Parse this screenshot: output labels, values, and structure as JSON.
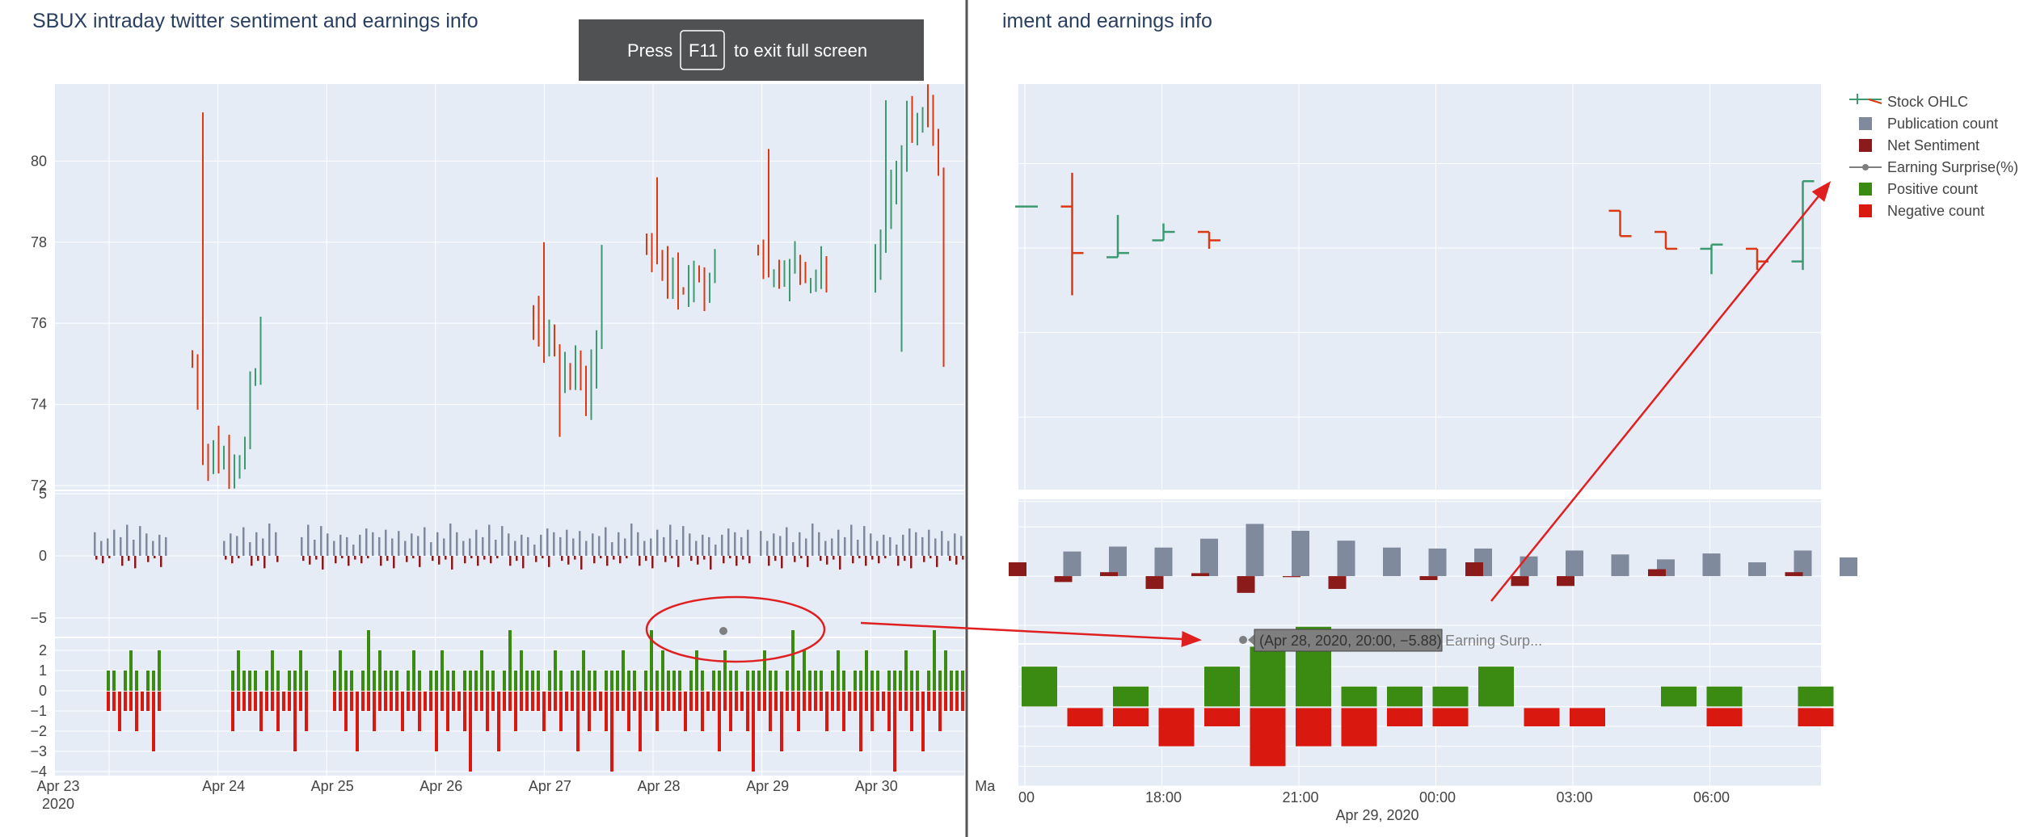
{
  "left_title": "SBUX intraday twitter sentiment and earnings info",
  "right_title_fragment": "iment and earnings info",
  "fullscreen_banner": {
    "press": "Press",
    "key": "F11",
    "rest": "to exit full screen"
  },
  "left_axes": {
    "price_ticks": [
      "80",
      "78",
      "76",
      "74",
      "72"
    ],
    "count_ticks": [
      "5",
      "0",
      "−5"
    ],
    "pn_ticks": [
      "2",
      "1",
      "0",
      "−1",
      "−2",
      "−3",
      "−4"
    ],
    "date_ticks": [
      "Apr 23",
      "Apr 24",
      "Apr 25",
      "Apr 26",
      "Apr 27",
      "Apr 28",
      "Apr 29",
      "Apr 30",
      "Ma"
    ],
    "year_label": "2020"
  },
  "right_axes": {
    "time_ticks": [
      "00",
      "18:00",
      "21:00",
      "00:00",
      "03:00",
      "06:00"
    ],
    "date_label": "Apr 29, 2020"
  },
  "hover": {
    "text": "(Apr 28, 2020, 20:00, −5.88)",
    "name": "Earning Surp..."
  },
  "legend": [
    {
      "label": "Stock OHLC",
      "type": "ohlc",
      "up": "#3d9970",
      "down": "#dc3912"
    },
    {
      "label": "Publication count",
      "type": "square",
      "color": "#7f8a9c"
    },
    {
      "label": "Net Sentiment",
      "type": "square",
      "color": "#8b1a1a"
    },
    {
      "label": "Earning Surprise(%)",
      "type": "line-marker",
      "color": "#7f7f7f"
    },
    {
      "label": "Positive count",
      "type": "square",
      "color": "#3b8a12"
    },
    {
      "label": "Negative count",
      "type": "square",
      "color": "#d9190f"
    }
  ],
  "colors": {
    "plot_bg": "#e5ecf6",
    "grid": "#ffffff",
    "ohlc_up": "#3d9970",
    "ohlc_down": "#dc3912",
    "pub": "#7f8a9c",
    "net": "#8b1a1a",
    "pos": "#3b8a12",
    "neg": "#d9190f",
    "annotation": "#e02020",
    "surprise": "#7f7f7f"
  },
  "chart_data": [
    {
      "type": "ohlc",
      "name": "Stock OHLC",
      "panel": "left-price",
      "ylim": [
        72,
        81.5
      ],
      "x_range": [
        "2020-04-23",
        "2020-05-01"
      ],
      "sessions": [
        {
          "date": "2020-04-24",
          "open": 75.0,
          "high": 81.2,
          "low": 72.3,
          "close": 75.7
        },
        {
          "date": "2020-04-27",
          "open": 76.4,
          "high": 78.0,
          "low": 73.2,
          "close": 77.6
        },
        {
          "date": "2020-04-28",
          "open": 78.0,
          "high": 79.6,
          "low": 76.6,
          "close": 77.8
        },
        {
          "date": "2020-04-29",
          "open": 77.9,
          "high": 80.3,
          "low": 76.9,
          "close": 77.3
        },
        {
          "date": "2020-04-30",
          "open": 77.3,
          "high": 81.5,
          "low": 75.3,
          "close": 75.5
        }
      ]
    },
    {
      "type": "bar",
      "panel": "left-counts",
      "ylim": [
        -6.5,
        5.2
      ],
      "series": [
        {
          "name": "Publication count",
          "hourly": [
            1.9,
            1.2,
            1.4,
            2.1,
            1.5,
            2.5,
            1.3,
            2.4,
            1.8,
            1.2,
            1.7,
            1.5,
            0.9,
            1.7,
            2.2,
            1.9,
            1.5,
            2.1,
            1.4,
            2.0,
            1.2,
            1.8,
            1.6,
            2.3,
            1.1,
            1.9,
            1.4,
            2.6
          ]
        },
        {
          "name": "Net Sentiment",
          "hourly": [
            -0.3,
            -0.6,
            -0.2,
            0.4,
            -0.8,
            -0.4,
            -1.0,
            0.3,
            -0.5,
            -0.2,
            -0.9,
            0.2,
            -0.4,
            -0.7,
            -0.3,
            -1.1,
            0.4,
            -0.6,
            -0.2,
            -0.8
          ]
        },
        {
          "name": "Earning Surprise(%)",
          "point": {
            "x": "2020-04-28 20:00",
            "y": -5.88
          }
        }
      ]
    },
    {
      "type": "bar",
      "panel": "left-posneg",
      "ylim": [
        -4.2,
        2.6
      ],
      "series": [
        {
          "name": "Positive count",
          "hourly": [
            1,
            1,
            0,
            1,
            2,
            1,
            0,
            1,
            1,
            2,
            1,
            1,
            0,
            1,
            1,
            1,
            2,
            1,
            1,
            0,
            1,
            3,
            1,
            2,
            1
          ]
        },
        {
          "name": "Negative count",
          "hourly": [
            -1,
            -1,
            -2,
            -1,
            -1,
            -2,
            -1,
            -1,
            -3,
            -1,
            -2,
            -1,
            -1,
            -2,
            -4,
            -1,
            -1,
            -2,
            -1,
            -3,
            -1,
            -1,
            -2,
            -1,
            -1
          ]
        }
      ]
    },
    {
      "type": "ohlc",
      "name": "Stock OHLC (zoomed)",
      "panel": "right-price",
      "x_range": [
        "2020-04-28 15:00",
        "2020-04-29 08:00"
      ],
      "bars": [
        {
          "x": "2020-04-28 15:00",
          "open": 78.6,
          "high": 78.6,
          "low": 78.6,
          "close": 78.6
        },
        {
          "x": "2020-04-28 16:00",
          "open": 78.6,
          "high": 79.4,
          "low": 76.5,
          "close": 77.5
        },
        {
          "x": "2020-04-28 17:00",
          "open": 77.4,
          "high": 78.4,
          "low": 77.4,
          "close": 77.5
        },
        {
          "x": "2020-04-28 18:00",
          "open": 77.8,
          "high": 78.2,
          "low": 77.8,
          "close": 78.0
        },
        {
          "x": "2020-04-28 19:00",
          "open": 78.0,
          "high": 78.0,
          "low": 77.6,
          "close": 77.8
        },
        {
          "x": "2020-04-29 04:00",
          "open": 78.5,
          "high": 78.5,
          "low": 77.9,
          "close": 77.9
        },
        {
          "x": "2020-04-29 05:00",
          "open": 78.0,
          "high": 78.0,
          "low": 77.6,
          "close": 77.6
        },
        {
          "x": "2020-04-29 06:00",
          "open": 77.6,
          "high": 77.7,
          "low": 77.0,
          "close": 77.7
        },
        {
          "x": "2020-04-29 07:00",
          "open": 77.6,
          "high": 77.6,
          "low": 77.1,
          "close": 77.3
        },
        {
          "x": "2020-04-29 08:00",
          "open": 77.3,
          "high": 79.2,
          "low": 77.1,
          "close": 79.2
        }
      ]
    },
    {
      "type": "bar",
      "panel": "right-counts",
      "x": [
        "15:00",
        "16:00",
        "17:00",
        "18:00",
        "19:00",
        "20:00",
        "21:00",
        "22:00",
        "23:00",
        "00:00",
        "01:00",
        "02:00",
        "03:00",
        "04:00",
        "05:00",
        "06:00",
        "07:00",
        "08:00",
        "09:00"
      ],
      "series": [
        {
          "name": "Publication count",
          "values": [
            0,
            2.5,
            3.0,
            2.9,
            3.8,
            5.3,
            4.6,
            3.6,
            2.9,
            2.8,
            2.8,
            2.0,
            2.6,
            2.2,
            1.7,
            2.3,
            1.4,
            2.6,
            1.9
          ]
        },
        {
          "name": "Net Sentiment",
          "values": [
            1.4,
            -0.6,
            0.4,
            -1.3,
            0.3,
            -1.7,
            -0.1,
            -1.3,
            0,
            -0.4,
            1.4,
            -1.0,
            -1.0,
            0,
            0.7,
            0,
            0,
            0.4,
            0
          ]
        },
        {
          "name": "Earning Surprise(%)",
          "point": {
            "x": "2020-04-28 20:00",
            "y": -5.88
          }
        }
      ]
    },
    {
      "type": "bar",
      "panel": "right-posneg",
      "x": [
        "15:00",
        "16:00",
        "17:00",
        "18:00",
        "19:00",
        "20:00",
        "21:00",
        "22:00",
        "23:00",
        "00:00",
        "01:00",
        "02:00",
        "03:00",
        "04:00",
        "05:00",
        "06:00",
        "07:00",
        "08:00"
      ],
      "series": [
        {
          "name": "Positive count",
          "values": [
            2,
            0,
            1,
            0,
            2,
            3,
            4,
            1,
            1,
            1,
            2,
            0,
            0,
            0,
            1,
            1,
            0,
            1
          ]
        },
        {
          "name": "Negative count",
          "values": [
            0,
            -1,
            -1,
            -2,
            -1,
            -3,
            -2,
            -2,
            -1,
            -1,
            0,
            -1,
            -1,
            0,
            0,
            -1,
            0,
            -1
          ]
        }
      ]
    }
  ]
}
